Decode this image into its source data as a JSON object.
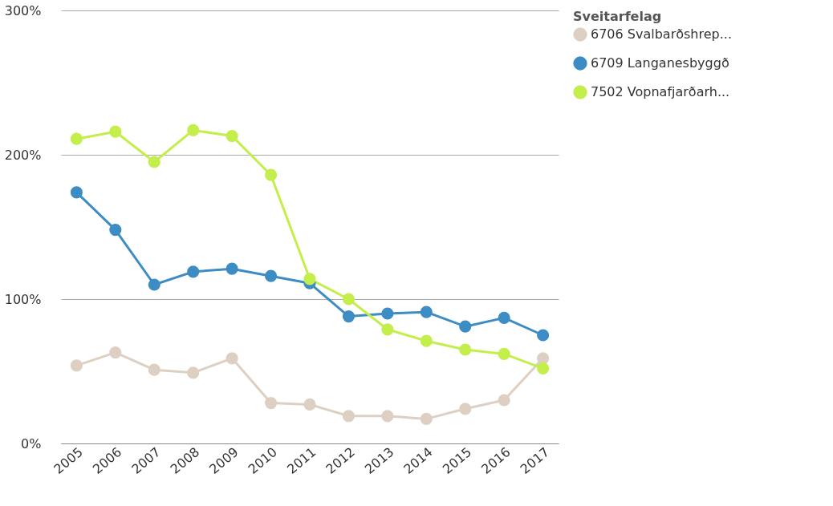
{
  "chart_data": {
    "type": "line",
    "legend_title": "Sveitarfelag",
    "categories": [
      "2005",
      "2006",
      "2007",
      "2008",
      "2009",
      "2010",
      "2011",
      "2012",
      "2013",
      "2014",
      "2015",
      "2016",
      "2017"
    ],
    "series": [
      {
        "name": "6706 Svalbarðshrep...",
        "color": "#ddd0c2",
        "values": [
          54,
          63,
          51,
          49,
          59,
          28,
          27,
          19,
          19,
          17,
          24,
          30,
          59
        ]
      },
      {
        "name": "6709 Langanesbyggð",
        "color": "#3d8cc4",
        "values": [
          174,
          148,
          110,
          119,
          121,
          116,
          111,
          88,
          90,
          91,
          81,
          87,
          75
        ]
      },
      {
        "name": "7502 Vopnafjarðarh...",
        "color": "#c3ee4b",
        "values": [
          211,
          216,
          195,
          217,
          213,
          186,
          114,
          100,
          79,
          71,
          65,
          62,
          52
        ]
      }
    ],
    "ylim": [
      0,
      300
    ],
    "yticks": [
      {
        "value": 0,
        "label": "0%"
      },
      {
        "value": 100,
        "label": "100%"
      },
      {
        "value": 200,
        "label": "200%"
      },
      {
        "value": 300,
        "label": "300%"
      }
    ],
    "grid": "y",
    "legend": "top right",
    "marker": "circle",
    "line_style": "solid"
  }
}
